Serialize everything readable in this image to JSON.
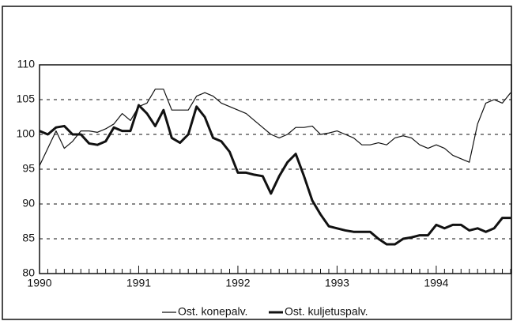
{
  "chart_data": {
    "type": "line",
    "categories": [
      "1990",
      null,
      null,
      null,
      null,
      null,
      null,
      null,
      null,
      null,
      null,
      null,
      "1991",
      null,
      null,
      null,
      null,
      null,
      null,
      null,
      null,
      null,
      null,
      null,
      "1992",
      null,
      null,
      null,
      null,
      null,
      null,
      null,
      null,
      null,
      null,
      null,
      "1993",
      null,
      null,
      null,
      null,
      null,
      null,
      null,
      null,
      null,
      null,
      null,
      "1994",
      null,
      null,
      null,
      null,
      null,
      null,
      null,
      null,
      null
    ],
    "series": [
      {
        "name": "Ost. konepalv.",
        "color": "#111111",
        "width": 1.2,
        "values": [
          95.5,
          98,
          100.5,
          98,
          99,
          100.5,
          100.5,
          100.3,
          100.8,
          101.5,
          103,
          102,
          104,
          104.5,
          106.5,
          106.5,
          103.5,
          103.5,
          103.5,
          105.5,
          106,
          105.5,
          104.5,
          104,
          103.5,
          103,
          102,
          101,
          100,
          99.5,
          100,
          101,
          101,
          101.2,
          100,
          100.2,
          100.5,
          100,
          99.5,
          98.5,
          98.5,
          98.8,
          98.5,
          99.5,
          99.8,
          99.5,
          98.5,
          98,
          98.5,
          98,
          97,
          96.5,
          96,
          101.5,
          104.5,
          105,
          104.5,
          106
        ]
      },
      {
        "name": "Ost. kuljetuspalv.",
        "color": "#111111",
        "width": 3,
        "values": [
          100.5,
          100,
          101,
          101.2,
          100,
          100,
          98.7,
          98.5,
          99,
          101,
          100.5,
          100.5,
          104.2,
          103,
          101.2,
          103.5,
          99.5,
          98.8,
          100,
          104,
          102.5,
          99.5,
          99,
          97.5,
          94.5,
          94.5,
          94.2,
          94,
          91.5,
          94,
          96,
          97.2,
          94,
          90.5,
          88.5,
          86.8,
          86.5,
          86.2,
          86,
          86,
          86,
          85,
          84.2,
          84.2,
          85,
          85.2,
          85.5,
          85.5,
          87,
          86.5,
          87,
          87,
          86.2,
          86.5,
          86,
          86.5,
          88,
          88
        ]
      }
    ],
    "ylim": [
      80,
      110
    ],
    "yticks": [
      80,
      85,
      90,
      95,
      100,
      105,
      110
    ],
    "grid": true
  }
}
